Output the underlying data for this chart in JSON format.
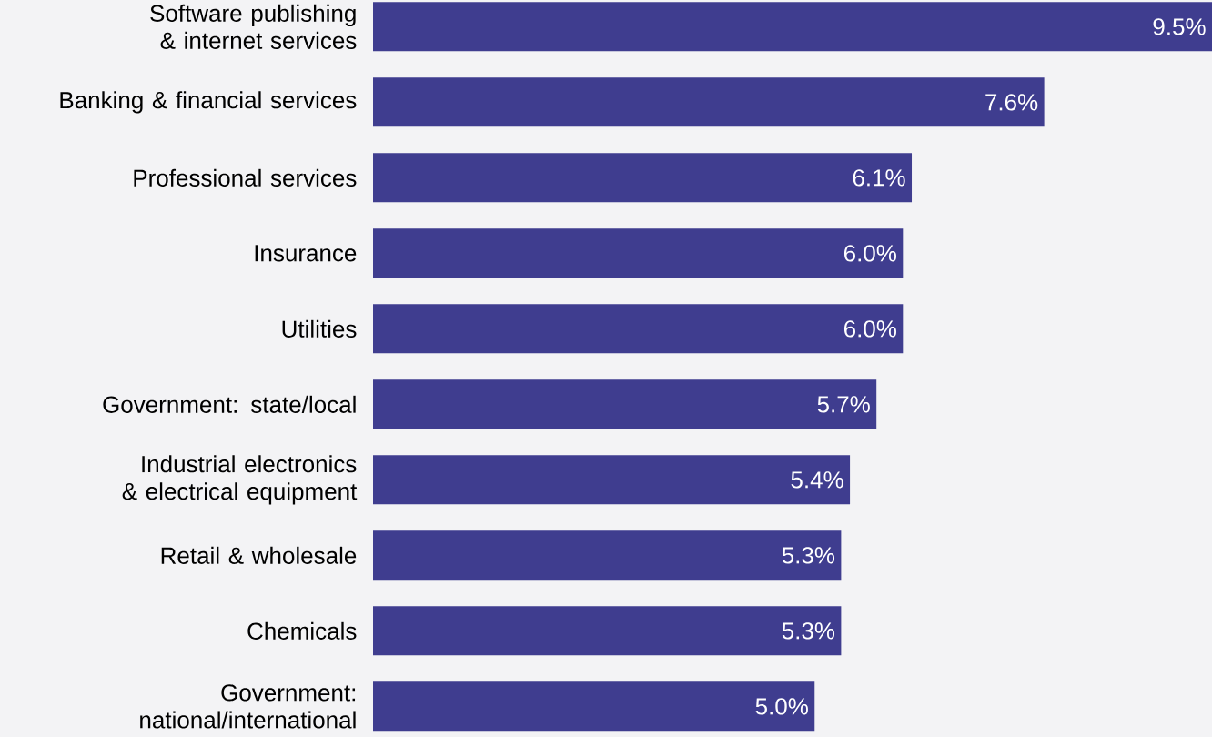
{
  "chart_data": {
    "type": "bar",
    "orientation": "horizontal",
    "categories": [
      "Software publishing & internet services",
      "Banking & financial services",
      "Professional services",
      "Insurance",
      "Utilities",
      "Government: state/local",
      "Industrial electronics & electrical equipment",
      "Retail & wholesale",
      "Chemicals",
      "Government: national/international"
    ],
    "values": [
      9.5,
      7.6,
      6.1,
      6.0,
      6.0,
      5.7,
      5.4,
      5.3,
      5.3,
      5.0
    ],
    "value_labels": [
      "9.5%",
      "7.6%",
      "6.1%",
      "6.0%",
      "6.0%",
      "5.7%",
      "5.4%",
      "5.3%",
      "5.3%",
      "5.0%"
    ],
    "color": "#3f3d8f"
  }
}
